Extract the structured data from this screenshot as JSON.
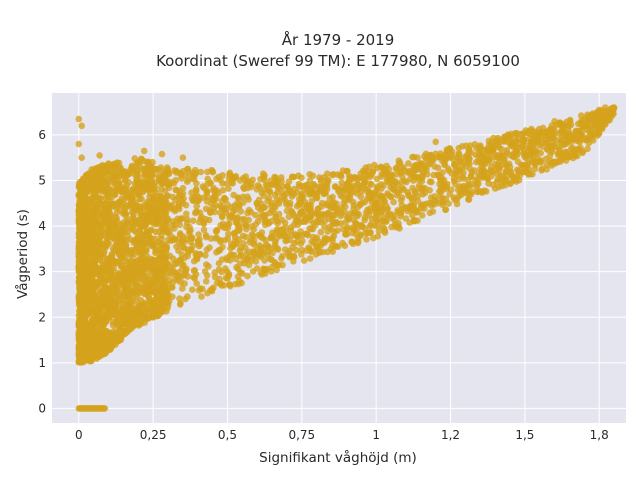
{
  "chart_data": {
    "type": "scatter",
    "title": "År 1979 - 2019",
    "subtitle": "Koordinat (Sweref 99 TM): E 177980, N 6059100",
    "xlabel": "Signifikant våghöjd (m)",
    "ylabel": "Vågperiod (s)",
    "xlim": [
      -0.09,
      1.84
    ],
    "ylim": [
      -0.32,
      6.92
    ],
    "x_ticks": [
      0,
      0.25,
      0.5,
      0.75,
      1,
      1.25,
      1.5,
      1.75
    ],
    "x_tick_labels": [
      "0",
      "0,25",
      "0,5",
      "0,75",
      "1",
      "1,2",
      "1,5",
      "1,8"
    ],
    "y_ticks": [
      0,
      1,
      2,
      3,
      4,
      5,
      6
    ],
    "y_tick_labels": [
      "0",
      "1",
      "2",
      "3",
      "4",
      "5",
      "6"
    ],
    "grid": true,
    "legend": "none",
    "colors": {
      "marker": "#d4a21c",
      "plot_background": "#e5e5f0",
      "grid": "#ffffff"
    },
    "density_bands": [
      {
        "x": 0.0,
        "y_low": 1.0,
        "y_high": 5.0
      },
      {
        "x": 0.05,
        "y_low": 1.05,
        "y_high": 5.3
      },
      {
        "x": 0.1,
        "y_low": 1.25,
        "y_high": 5.4
      },
      {
        "x": 0.15,
        "y_low": 1.55,
        "y_high": 5.45
      },
      {
        "x": 0.2,
        "y_low": 1.8,
        "y_high": 5.5
      },
      {
        "x": 0.3,
        "y_low": 2.15,
        "y_high": 5.3
      },
      {
        "x": 0.4,
        "y_low": 2.4,
        "y_high": 5.25
      },
      {
        "x": 0.5,
        "y_low": 2.65,
        "y_high": 5.2
      },
      {
        "x": 0.6,
        "y_low": 2.85,
        "y_high": 5.15
      },
      {
        "x": 0.7,
        "y_low": 3.05,
        "y_high": 5.1
      },
      {
        "x": 0.8,
        "y_low": 3.3,
        "y_high": 5.15
      },
      {
        "x": 0.9,
        "y_low": 3.5,
        "y_high": 5.25
      },
      {
        "x": 1.0,
        "y_low": 3.75,
        "y_high": 5.35
      },
      {
        "x": 1.1,
        "y_low": 4.0,
        "y_high": 5.5
      },
      {
        "x": 1.2,
        "y_low": 4.25,
        "y_high": 5.65
      },
      {
        "x": 1.3,
        "y_low": 4.55,
        "y_high": 5.8
      },
      {
        "x": 1.4,
        "y_low": 4.8,
        "y_high": 5.95
      },
      {
        "x": 1.5,
        "y_low": 5.05,
        "y_high": 6.1
      },
      {
        "x": 1.6,
        "y_low": 5.3,
        "y_high": 6.25
      },
      {
        "x": 1.7,
        "y_low": 5.6,
        "y_high": 6.45
      },
      {
        "x": 1.8,
        "y_low": 6.45,
        "y_high": 6.6
      }
    ],
    "zero_period_points": {
      "x_from": 0.0,
      "x_to": 0.09,
      "y": 0
    },
    "outliers": [
      [
        0.0,
        6.35
      ],
      [
        0.01,
        6.2
      ],
      [
        0.0,
        5.8
      ],
      [
        0.01,
        5.5
      ],
      [
        0.07,
        5.55
      ],
      [
        0.08,
        4.95
      ],
      [
        0.03,
        4.75
      ],
      [
        0.0,
        4.35
      ],
      [
        0.22,
        5.65
      ],
      [
        0.28,
        5.58
      ],
      [
        0.35,
        5.5
      ],
      [
        0.45,
        5.2
      ],
      [
        0.23,
        2.5
      ],
      [
        0.5,
        2.85
      ],
      [
        0.65,
        3.1
      ],
      [
        0.92,
        3.85
      ],
      [
        0.98,
        4.0
      ],
      [
        1.1,
        4.4
      ],
      [
        1.12,
        4.35
      ],
      [
        1.2,
        5.85
      ],
      [
        1.35,
        5.25
      ],
      [
        1.45,
        5.3
      ],
      [
        1.6,
        6.3
      ],
      [
        1.7,
        6.35
      ],
      [
        1.75,
        6.55
      ],
      [
        1.77,
        6.6
      ],
      [
        1.79,
        6.58
      ],
      [
        1.8,
        6.6
      ],
      [
        0.05,
        3.6
      ],
      [
        0.62,
        5.15
      ]
    ]
  }
}
